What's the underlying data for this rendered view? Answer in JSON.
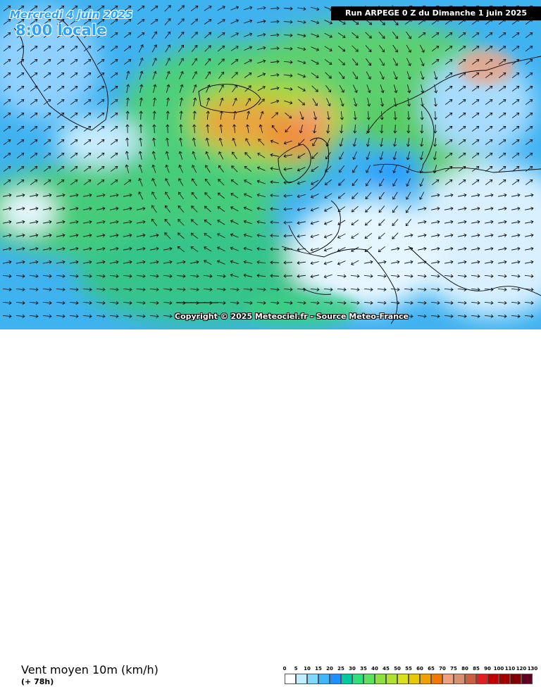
{
  "map": {
    "date_line": "Mercredi 4 juin 2025",
    "time_line": "8:00 locale",
    "run_label": "Run ARPEGE 0 Z du Dimanche 1 juin 2025",
    "copyright": "Copyright © 2025 Meteociel.fr - Source Meteo-France"
  },
  "footer": {
    "title": "Vent moyen 10m (km/h)",
    "lead_time": "(+ 78h)"
  },
  "legend": {
    "labels": [
      "0",
      "5",
      "10",
      "15",
      "20",
      "25",
      "30",
      "35",
      "40",
      "45",
      "50",
      "55",
      "60",
      "65",
      "70",
      "75",
      "80",
      "85",
      "90",
      "100",
      "110",
      "120",
      "130"
    ],
    "colors": [
      "#ffffff",
      "#bfefff",
      "#7fd8ff",
      "#3fb7ff",
      "#1e90ff",
      "#00c8a0",
      "#2ee07a",
      "#5ee060",
      "#8ce040",
      "#b0e030",
      "#d8e020",
      "#e8c800",
      "#f0a000",
      "#f07800",
      "#f0a080",
      "#d89070",
      "#c86040",
      "#e02020",
      "#c00000",
      "#a00000",
      "#800000",
      "#600020"
    ]
  },
  "icons": {
    "arrows": "wind-arrow-icon",
    "coastlines": "coastline-outline"
  }
}
